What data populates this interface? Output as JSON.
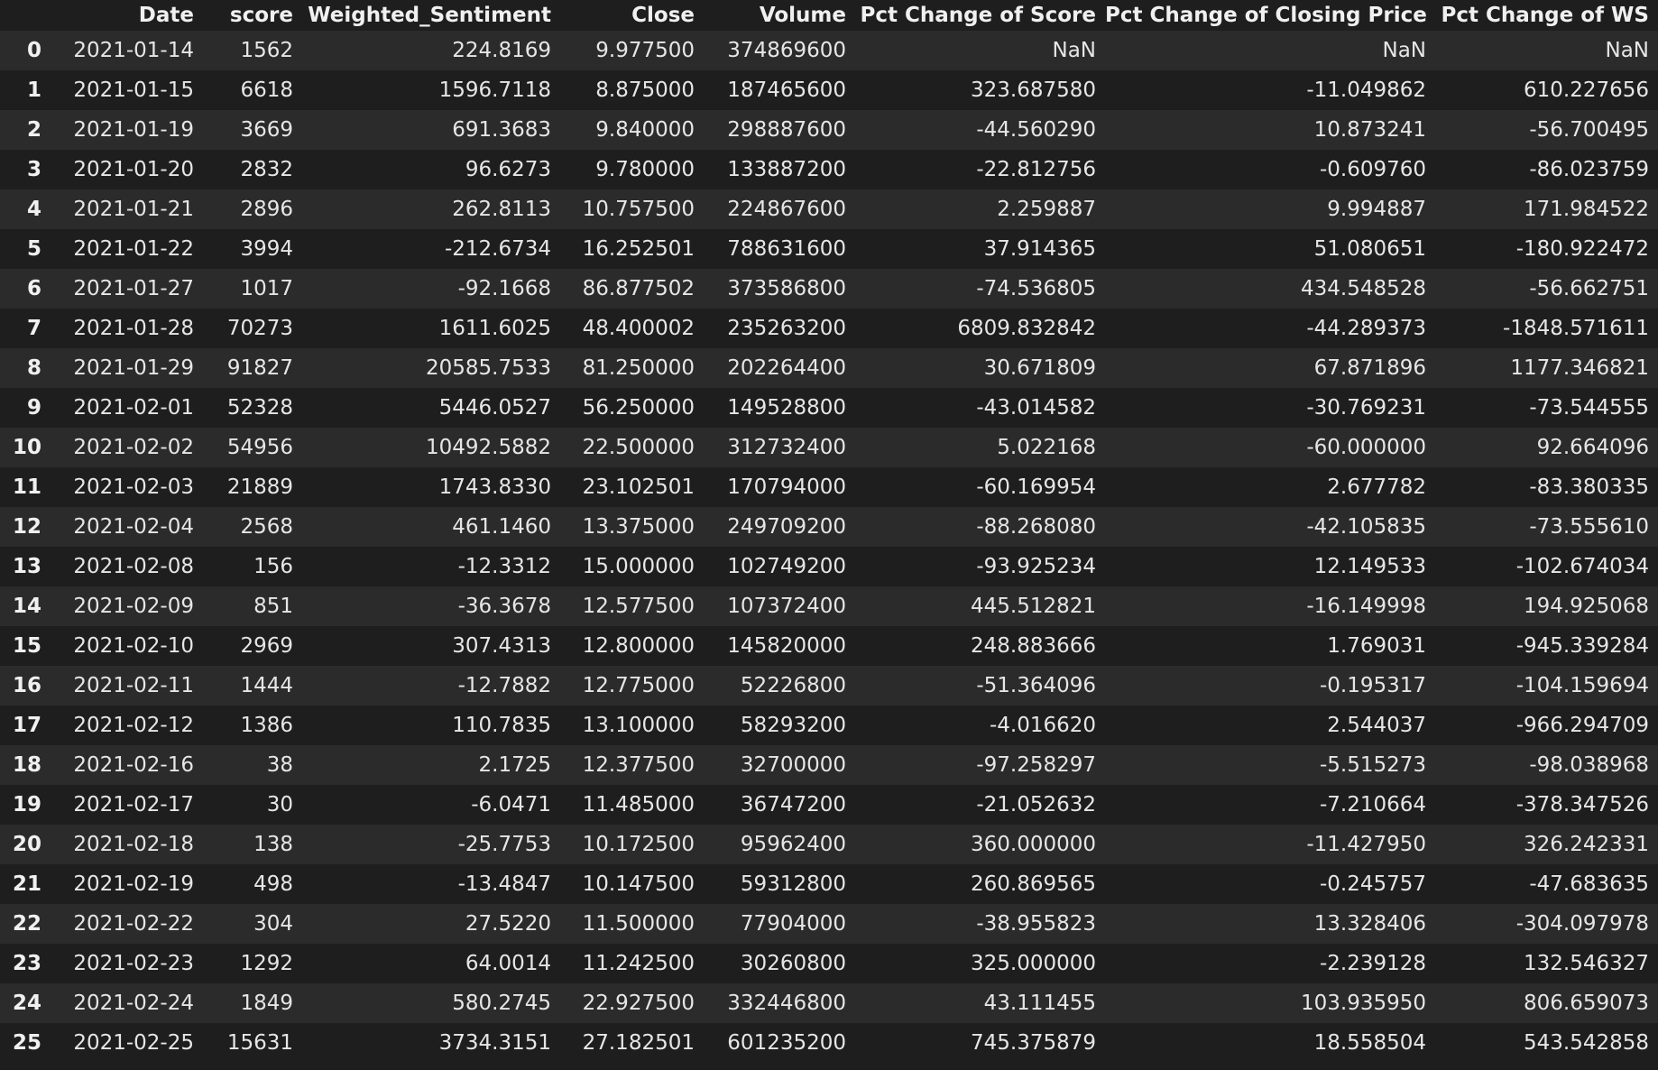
{
  "table": {
    "columns": [
      "",
      "Date",
      "score",
      "Weighted_Sentiment",
      "Close",
      "Volume",
      "Pct Change of Score",
      "Pct Change of Closing Price",
      "Pct Change of WS"
    ],
    "rows": [
      [
        "0",
        "2021-01-14",
        "1562",
        "224.8169",
        "9.977500",
        "374869600",
        "NaN",
        "NaN",
        "NaN"
      ],
      [
        "1",
        "2021-01-15",
        "6618",
        "1596.7118",
        "8.875000",
        "187465600",
        "323.687580",
        "-11.049862",
        "610.227656"
      ],
      [
        "2",
        "2021-01-19",
        "3669",
        "691.3683",
        "9.840000",
        "298887600",
        "-44.560290",
        "10.873241",
        "-56.700495"
      ],
      [
        "3",
        "2021-01-20",
        "2832",
        "96.6273",
        "9.780000",
        "133887200",
        "-22.812756",
        "-0.609760",
        "-86.023759"
      ],
      [
        "4",
        "2021-01-21",
        "2896",
        "262.8113",
        "10.757500",
        "224867600",
        "2.259887",
        "9.994887",
        "171.984522"
      ],
      [
        "5",
        "2021-01-22",
        "3994",
        "-212.6734",
        "16.252501",
        "788631600",
        "37.914365",
        "51.080651",
        "-180.922472"
      ],
      [
        "6",
        "2021-01-27",
        "1017",
        "-92.1668",
        "86.877502",
        "373586800",
        "-74.536805",
        "434.548528",
        "-56.662751"
      ],
      [
        "7",
        "2021-01-28",
        "70273",
        "1611.6025",
        "48.400002",
        "235263200",
        "6809.832842",
        "-44.289373",
        "-1848.571611"
      ],
      [
        "8",
        "2021-01-29",
        "91827",
        "20585.7533",
        "81.250000",
        "202264400",
        "30.671809",
        "67.871896",
        "1177.346821"
      ],
      [
        "9",
        "2021-02-01",
        "52328",
        "5446.0527",
        "56.250000",
        "149528800",
        "-43.014582",
        "-30.769231",
        "-73.544555"
      ],
      [
        "10",
        "2021-02-02",
        "54956",
        "10492.5882",
        "22.500000",
        "312732400",
        "5.022168",
        "-60.000000",
        "92.664096"
      ],
      [
        "11",
        "2021-02-03",
        "21889",
        "1743.8330",
        "23.102501",
        "170794000",
        "-60.169954",
        "2.677782",
        "-83.380335"
      ],
      [
        "12",
        "2021-02-04",
        "2568",
        "461.1460",
        "13.375000",
        "249709200",
        "-88.268080",
        "-42.105835",
        "-73.555610"
      ],
      [
        "13",
        "2021-02-08",
        "156",
        "-12.3312",
        "15.000000",
        "102749200",
        "-93.925234",
        "12.149533",
        "-102.674034"
      ],
      [
        "14",
        "2021-02-09",
        "851",
        "-36.3678",
        "12.577500",
        "107372400",
        "445.512821",
        "-16.149998",
        "194.925068"
      ],
      [
        "15",
        "2021-02-10",
        "2969",
        "307.4313",
        "12.800000",
        "145820000",
        "248.883666",
        "1.769031",
        "-945.339284"
      ],
      [
        "16",
        "2021-02-11",
        "1444",
        "-12.7882",
        "12.775000",
        "52226800",
        "-51.364096",
        "-0.195317",
        "-104.159694"
      ],
      [
        "17",
        "2021-02-12",
        "1386",
        "110.7835",
        "13.100000",
        "58293200",
        "-4.016620",
        "2.544037",
        "-966.294709"
      ],
      [
        "18",
        "2021-02-16",
        "38",
        "2.1725",
        "12.377500",
        "32700000",
        "-97.258297",
        "-5.515273",
        "-98.038968"
      ],
      [
        "19",
        "2021-02-17",
        "30",
        "-6.0471",
        "11.485000",
        "36747200",
        "-21.052632",
        "-7.210664",
        "-378.347526"
      ],
      [
        "20",
        "2021-02-18",
        "138",
        "-25.7753",
        "10.172500",
        "95962400",
        "360.000000",
        "-11.427950",
        "326.242331"
      ],
      [
        "21",
        "2021-02-19",
        "498",
        "-13.4847",
        "10.147500",
        "59312800",
        "260.869565",
        "-0.245757",
        "-47.683635"
      ],
      [
        "22",
        "2021-02-22",
        "304",
        "27.5220",
        "11.500000",
        "77904000",
        "-38.955823",
        "13.328406",
        "-304.097978"
      ],
      [
        "23",
        "2021-02-23",
        "1292",
        "64.0014",
        "11.242500",
        "30260800",
        "325.000000",
        "-2.239128",
        "132.546327"
      ],
      [
        "24",
        "2021-02-24",
        "1849",
        "580.2745",
        "22.927500",
        "332446800",
        "43.111455",
        "103.935950",
        "806.659073"
      ],
      [
        "25",
        "2021-02-25",
        "15631",
        "3734.3151",
        "27.182501",
        "601235200",
        "745.375879",
        "18.558504",
        "543.542858"
      ]
    ]
  }
}
